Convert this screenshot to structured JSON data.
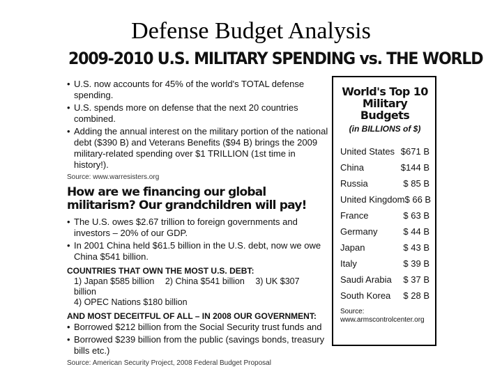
{
  "slide": {
    "title": "Defense Budget Analysis"
  },
  "article": {
    "headline": "2009-2010 U.S. MILITARY SPENDING vs. THE WORLD",
    "bullets_1": [
      "U.S. now accounts for 45% of the world's TOTAL defense spending.",
      "U.S. spends more on defense that the next 20 countries combined.",
      "Adding the annual interest on the military portion of the national debt ($390 B) and Veterans Benefits ($94 B) brings the 2009 military-related spending over $1 TRILLION (1st time in history!)."
    ],
    "source_1": "Source: www.warresisters.org",
    "subhead": "How are we financing our global militarism? Our grandchildren will pay!",
    "bullets_2": [
      "The U.S. owes $2.67 trillion to foreign governments and investors – 20% of our GDP.",
      "In 2001 China held $61.5 billion in the U.S. debt, now we owe China $541 billion."
    ],
    "countries_head": "COUNTRIES THAT OWN THE MOST U.S. DEBT:",
    "countries_line_1": [
      "1) Japan $585 billion",
      "2) China $541 billion",
      "3) UK $307 billion"
    ],
    "countries_line_2": "4) OPEC Nations $180 billion",
    "deceitful_head": "AND MOST DECEITFUL OF ALL – IN 2008 OUR GOVERNMENT:",
    "bullets_3": [
      "Borrowed $212 billion from the Social Security trust funds and",
      "Borrowed $239 billion from the public (savings bonds, treasury bills etc.)"
    ],
    "source_2": "Source: American Security Project, 2008 Federal Budget Proposal"
  },
  "panel": {
    "title": "World's Top 10 Military Budgets",
    "subtitle": "(in BILLIONS of $)",
    "ranks": [
      {
        "country": "United States",
        "amount": "$671 B"
      },
      {
        "country": "China",
        "amount": "$144 B"
      },
      {
        "country": "Russia",
        "amount": "$ 85 B"
      },
      {
        "country": "United Kingdom",
        "amount": "$ 66 B"
      },
      {
        "country": "France",
        "amount": "$ 63 B"
      },
      {
        "country": "Germany",
        "amount": "$ 44 B"
      },
      {
        "country": "Japan",
        "amount": "$ 43 B"
      },
      {
        "country": "Italy",
        "amount": "$ 39 B"
      },
      {
        "country": "Saudi Arabia",
        "amount": "$ 37 B"
      },
      {
        "country": "South Korea",
        "amount": "$ 28 B"
      }
    ],
    "source_label": "Source:",
    "source_url": "www.armscontrolcenter.org"
  }
}
